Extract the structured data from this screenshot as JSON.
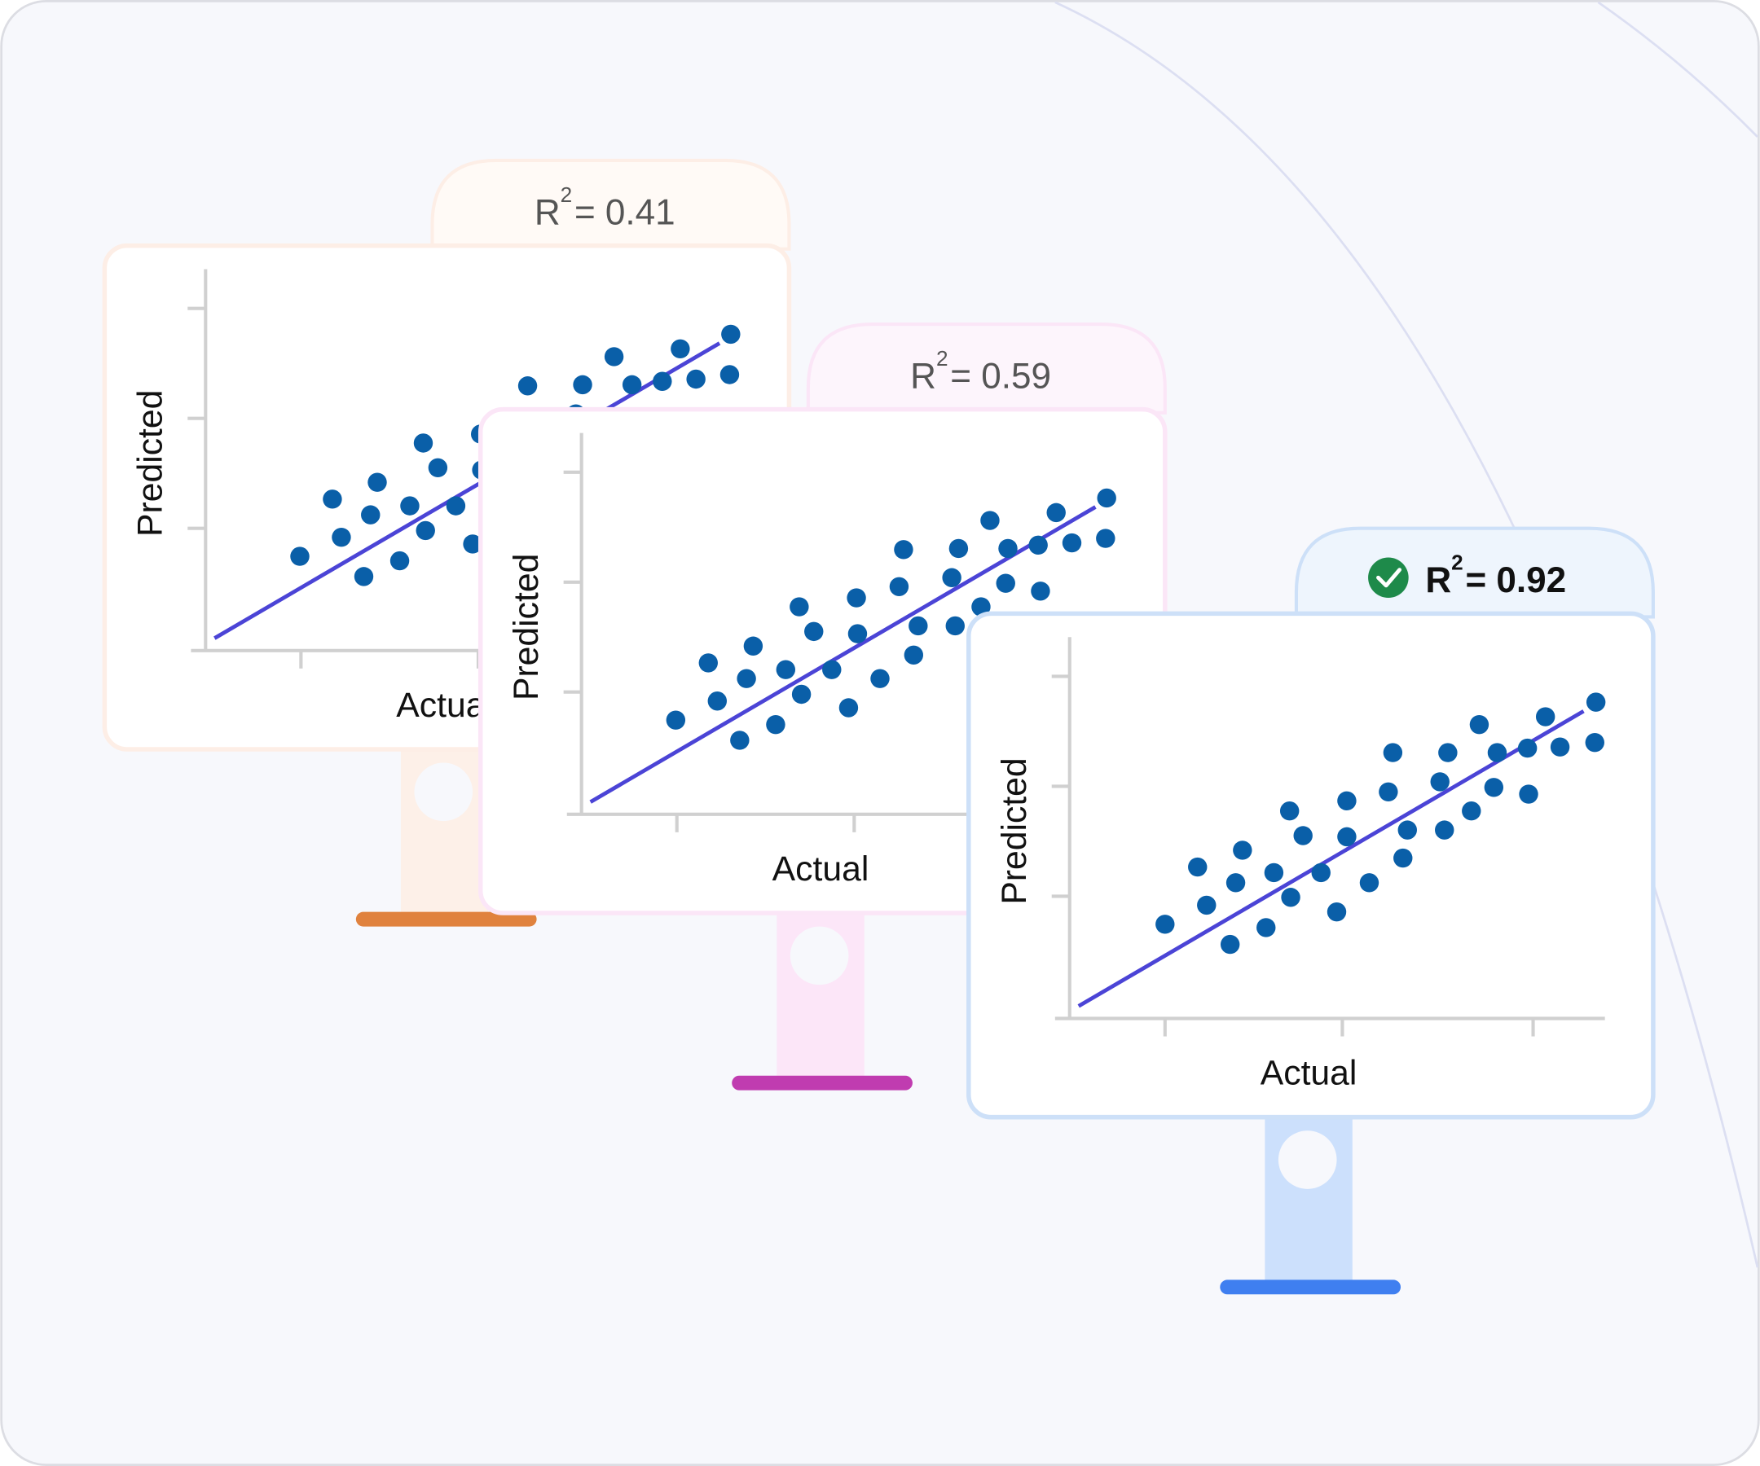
{
  "panels": [
    {
      "r_label": "R",
      "r_exponent": "2",
      "r_value": "= 0.41",
      "y_axis_label": "Predicted",
      "x_axis_label": "Actual"
    },
    {
      "r_label": "R",
      "r_exponent": "2",
      "r_value": "= 0.59",
      "y_axis_label": "Predicted",
      "x_axis_label": "Actual"
    },
    {
      "r_label": "R",
      "r_exponent": "2",
      "r_value": "= 0.92",
      "y_axis_label": "Predicted",
      "x_axis_label": "Actual"
    }
  ]
}
